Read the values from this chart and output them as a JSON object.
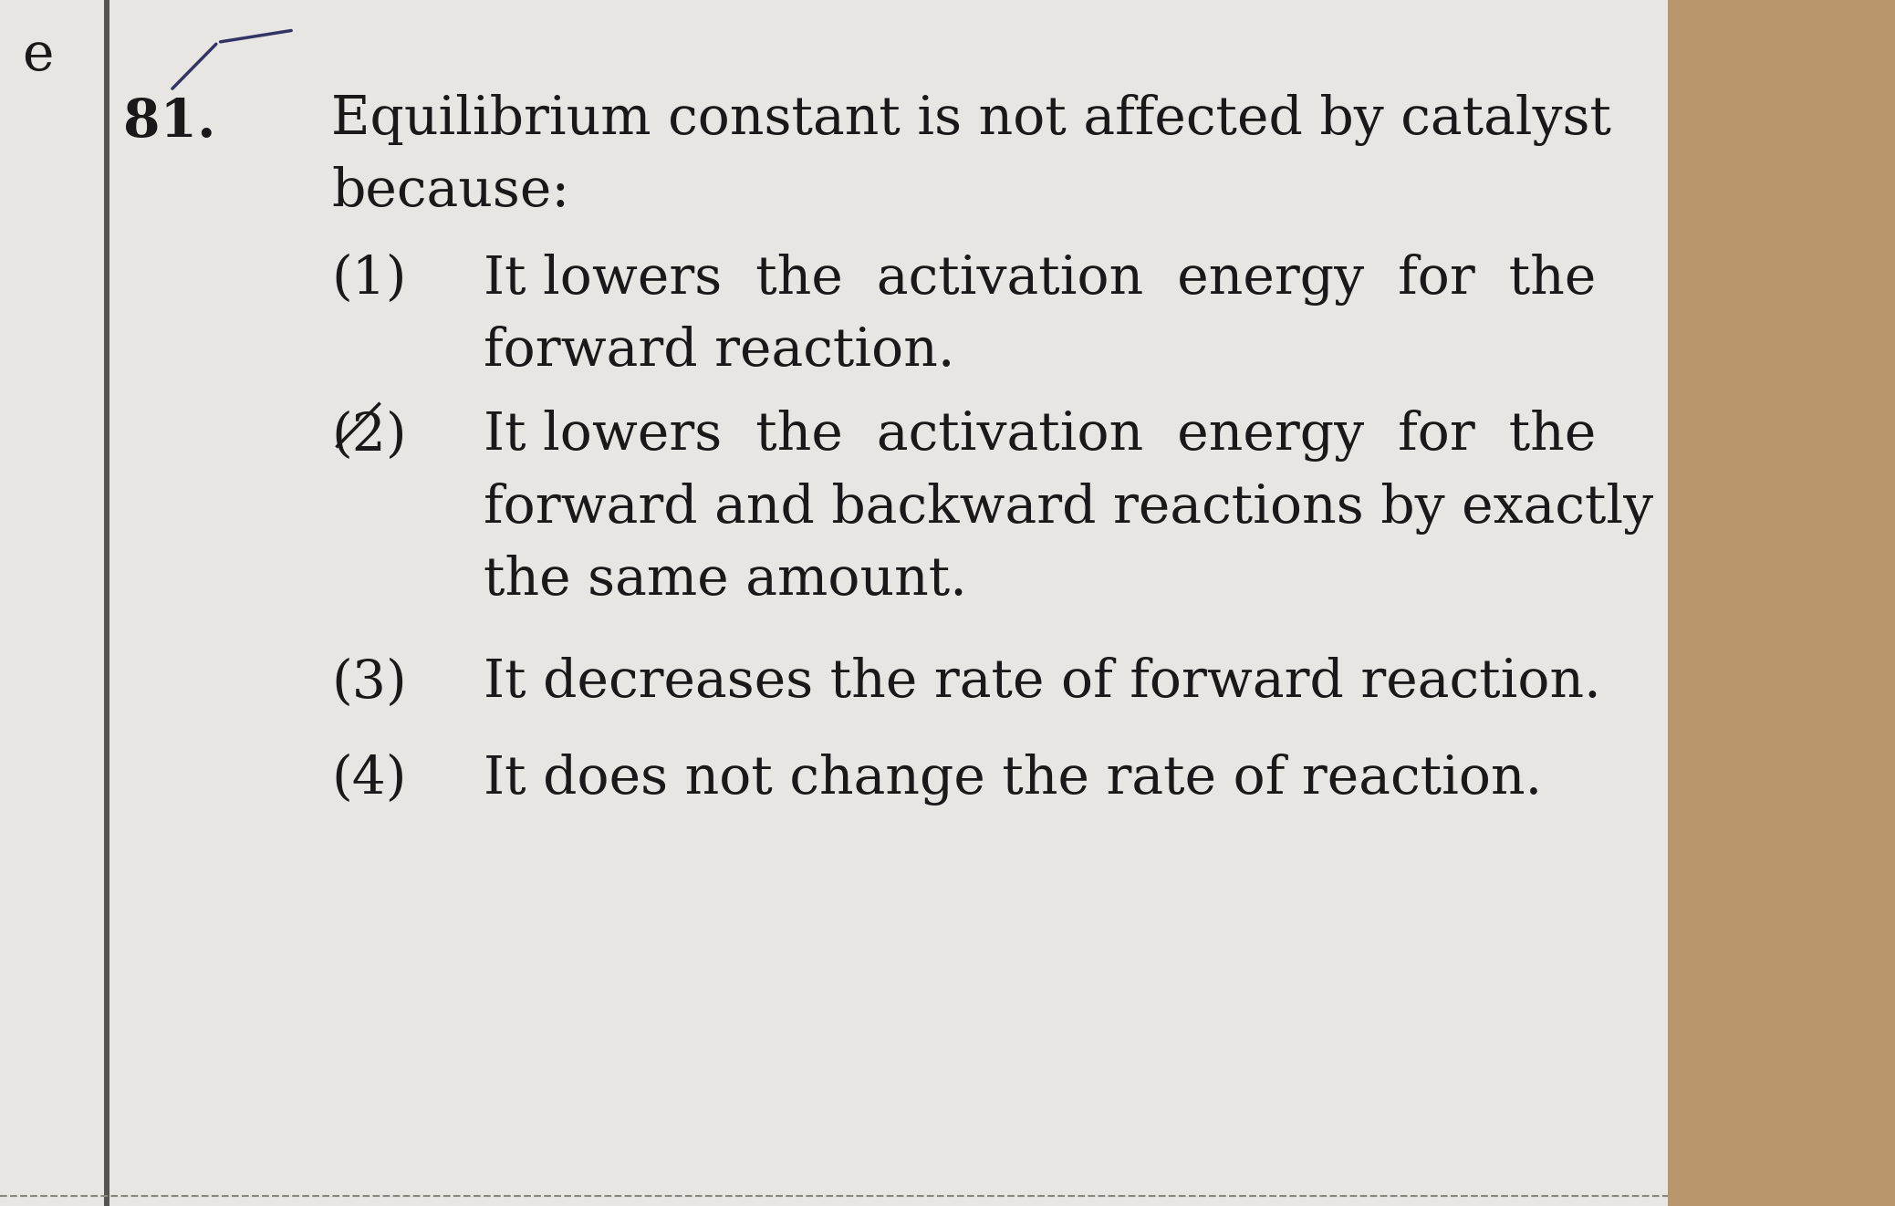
{
  "bg_color": "#d8d4cc",
  "page_color": "#e8e6e2",
  "left_border_color": "#9a9690",
  "right_decor_color": "#b8956a",
  "text_color": "#1a1818",
  "corner_e": "e",
  "question_number": "81.",
  "q_line1": "Equilibrium constant is not affected by catalyst",
  "q_line2": "because:",
  "opt1_num": "(1)",
  "opt1_line1": "It lowers  the  activation  energy  for  the",
  "opt1_line2": "forward reaction.",
  "opt2_num": "(2)",
  "opt2_line1": "It lowers  the  activation  energy  for  the",
  "opt2_line2": "forward and backward reactions by exactly",
  "opt2_line3": "the same amount.",
  "opt3_num": "(3)",
  "opt3_text": "It decreases the rate of forward reaction.",
  "opt4_num": "(4)",
  "opt4_text": "It does not change the rate of reaction.",
  "font_size": 42,
  "font_family": "DejaVu Serif"
}
